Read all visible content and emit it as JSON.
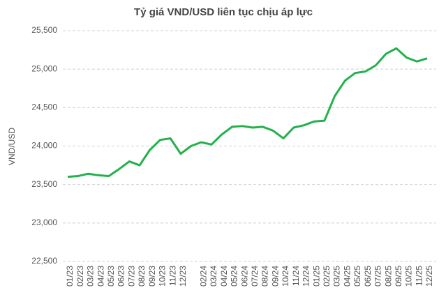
{
  "chart_data": {
    "type": "line",
    "title": "Tỷ giá VND/USD liên tục chịu áp lực",
    "y_label": "VND/USD",
    "categories": [
      "01/23",
      "02/23",
      "03/23",
      "04/23",
      "05/23",
      "06/23",
      "07/23",
      "08/23",
      "09/23",
      "10/23",
      "11/23",
      "12/23",
      null,
      "02/24",
      "03/24",
      "04/24",
      "05/24",
      "06/24",
      "07/24",
      "08/24",
      "09/24",
      "10/24",
      "11/24",
      "12/24",
      "01/25",
      "02/25",
      "03/25",
      "04/25",
      "05/25",
      "06/25",
      "07/25",
      "08/25",
      "09/25",
      "10/25",
      "11/25",
      "12/25"
    ],
    "series": [
      {
        "name": "VND/USD",
        "color": "#22b14c",
        "values": [
          23600,
          23610,
          23640,
          23620,
          23610,
          23700,
          23800,
          23750,
          23950,
          24080,
          24100,
          23900,
          24000,
          24050,
          24020,
          24150,
          24250,
          24260,
          24240,
          24250,
          24200,
          24100,
          24240,
          24270,
          24320,
          24330,
          24650,
          24850,
          24950,
          24970,
          25050,
          25200,
          25270,
          25150,
          25100,
          25140
        ]
      }
    ],
    "ylim": [
      22500,
      25500
    ],
    "yticks": [
      {
        "value": 22500,
        "label": "22,500"
      },
      {
        "value": 23000,
        "label": "23,000"
      },
      {
        "value": 23500,
        "label": "23,500"
      },
      {
        "value": 24000,
        "label": "24,000"
      },
      {
        "value": 24500,
        "label": "24,500"
      },
      {
        "value": 25000,
        "label": "25,000"
      },
      {
        "value": 25500,
        "label": "25,500"
      }
    ],
    "grid": true
  }
}
